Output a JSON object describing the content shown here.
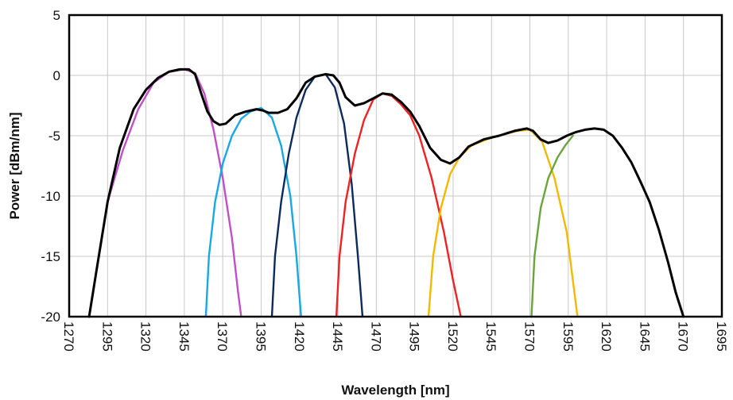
{
  "chart_data": {
    "type": "line",
    "title": "",
    "xlabel": "Wavelength [nm]",
    "ylabel": "Power [dBm/nm]",
    "xlim": [
      1270,
      1695
    ],
    "ylim": [
      -20,
      5
    ],
    "x_ticks": [
      1270,
      1295,
      1320,
      1345,
      1370,
      1395,
      1420,
      1445,
      1470,
      1495,
      1520,
      1545,
      1570,
      1595,
      1620,
      1645,
      1670,
      1695
    ],
    "y_ticks": [
      -20,
      -15,
      -10,
      -5,
      0,
      5
    ],
    "x_tick_labels": [
      "1270",
      "1295",
      "1320",
      "1345",
      "1370",
      "1395",
      "1420",
      "1445",
      "1470",
      "1495",
      "1520",
      "1545",
      "1570",
      "1595",
      "1620",
      "1645",
      "1670",
      "1695"
    ],
    "y_tick_labels": [
      "-20",
      "-15",
      "-10",
      "-5",
      "0",
      "5"
    ],
    "grid": true,
    "legend": "none",
    "series": [
      {
        "color": "#c050c8",
        "x": [
          1295,
          1305,
          1315,
          1325,
          1335,
          1345,
          1352,
          1358,
          1364,
          1370,
          1376,
          1380,
          1382
        ],
        "y": [
          -10.5,
          -6.2,
          -2.8,
          -0.6,
          0.3,
          0.5,
          0.2,
          -1.5,
          -4.5,
          -8.5,
          -13.5,
          -18,
          -20
        ]
      },
      {
        "color": "#1aa7e6",
        "x": [
          1359,
          1361,
          1365,
          1370,
          1376,
          1382,
          1388,
          1395,
          1402,
          1408,
          1414,
          1418,
          1421
        ],
        "y": [
          -20,
          -15,
          -10.5,
          -7.3,
          -5,
          -3.6,
          -3.0,
          -2.7,
          -3.5,
          -5.8,
          -10,
          -15,
          -20
        ]
      },
      {
        "color": "#0d2a5c",
        "x": [
          1402,
          1404,
          1408,
          1413,
          1418,
          1424,
          1430,
          1437,
          1443,
          1449,
          1454,
          1458,
          1461
        ],
        "y": [
          -20,
          -15,
          -10.5,
          -6.5,
          -3.5,
          -1.2,
          -0.1,
          0.1,
          -1.0,
          -4.0,
          -9.0,
          -15,
          -20
        ]
      },
      {
        "color": "#ee2222",
        "x": [
          1444,
          1446,
          1450,
          1456,
          1462,
          1468,
          1474,
          1480,
          1486,
          1492,
          1498,
          1506,
          1514,
          1520,
          1525
        ],
        "y": [
          -20,
          -15,
          -10.5,
          -6.5,
          -3.7,
          -2.0,
          -1.5,
          -1.7,
          -2.4,
          -3.3,
          -5.0,
          -8.5,
          -13,
          -17,
          -20
        ]
      },
      {
        "color": "#f5b800",
        "x": [
          1504,
          1507,
          1512,
          1518,
          1524,
          1532,
          1542,
          1552,
          1562,
          1570,
          1578,
          1586,
          1594,
          1598,
          1601
        ],
        "y": [
          -20,
          -15,
          -11,
          -8.2,
          -6.8,
          -5.8,
          -5.3,
          -4.9,
          -4.6,
          -4.5,
          -5.5,
          -8.5,
          -13,
          -17,
          -20
        ]
      },
      {
        "color": "#6aa53c",
        "x": [
          1571,
          1573,
          1577,
          1582,
          1588,
          1593,
          1598
        ],
        "y": [
          -20,
          -15,
          -11,
          -8.5,
          -6.8,
          -5.8,
          -5.0
        ]
      },
      {
        "color": "#000000",
        "x": [
          1283,
          1288,
          1295,
          1303,
          1312,
          1320,
          1328,
          1335,
          1342,
          1348,
          1352,
          1356,
          1360,
          1364,
          1368,
          1372,
          1378,
          1385,
          1392,
          1396,
          1400,
          1406,
          1412,
          1418,
          1424,
          1430,
          1437,
          1442,
          1446,
          1450,
          1456,
          1462,
          1468,
          1474,
          1480,
          1486,
          1492,
          1498,
          1505,
          1512,
          1518,
          1524,
          1530,
          1540,
          1550,
          1560,
          1568,
          1572,
          1577,
          1582,
          1588,
          1594,
          1600,
          1606,
          1612,
          1618,
          1624,
          1630,
          1636,
          1642,
          1648,
          1654,
          1660,
          1665,
          1670
        ],
        "y": [
          -20,
          -16,
          -10.5,
          -6,
          -2.8,
          -1.2,
          -0.2,
          0.3,
          0.5,
          0.5,
          0.1,
          -1.5,
          -3.0,
          -3.8,
          -4.1,
          -4.0,
          -3.3,
          -3.0,
          -2.8,
          -2.9,
          -3.1,
          -3.1,
          -2.8,
          -1.9,
          -0.6,
          -0.1,
          0.1,
          0.0,
          -0.6,
          -1.8,
          -2.5,
          -2.3,
          -1.9,
          -1.5,
          -1.6,
          -2.2,
          -3.0,
          -4.2,
          -6.0,
          -7.0,
          -7.3,
          -6.8,
          -5.9,
          -5.3,
          -5.0,
          -4.6,
          -4.4,
          -4.6,
          -5.3,
          -5.6,
          -5.4,
          -5.0,
          -4.7,
          -4.5,
          -4.4,
          -4.5,
          -5.0,
          -6.0,
          -7.2,
          -8.8,
          -10.5,
          -12.8,
          -15.5,
          -18,
          -20
        ]
      }
    ]
  }
}
